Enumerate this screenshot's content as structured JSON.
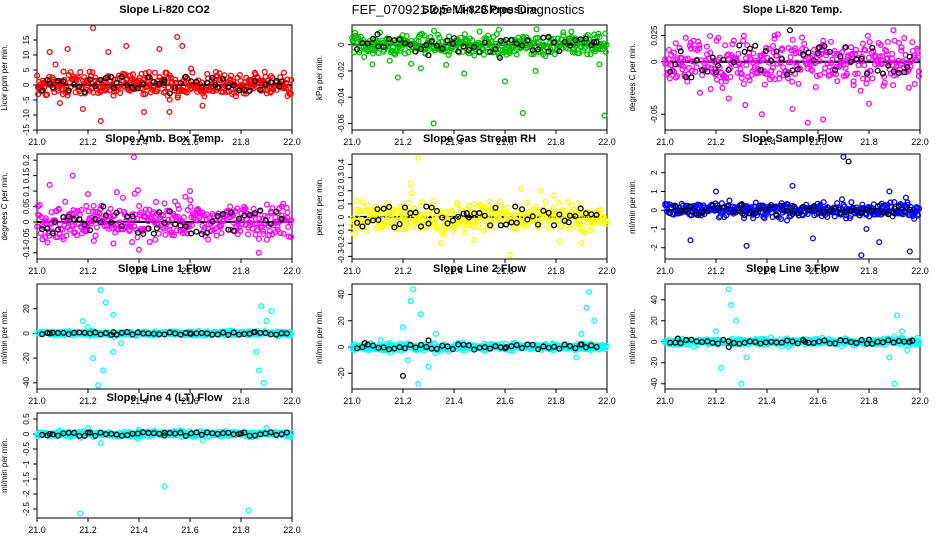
{
  "page_title": "FEF_070921  2.5 Min. Slope Diagnostics",
  "chart_data": [
    {
      "type": "scatter",
      "title": "Slope Li-820 CO2",
      "ylabel": "Licor ppm per min.",
      "xlim": [
        21.0,
        22.0
      ],
      "ylim": [
        -15,
        20
      ],
      "yticks": [
        -15,
        -10,
        -5,
        0,
        5,
        10,
        15
      ],
      "color": "#ff0000",
      "spread": 3.5,
      "out_min": -12,
      "out_max": 19,
      "outliers": [
        [
          21.22,
          19
        ],
        [
          21.05,
          11
        ],
        [
          21.12,
          12
        ],
        [
          21.28,
          11
        ],
        [
          21.35,
          13
        ],
        [
          21.48,
          12
        ],
        [
          21.55,
          16
        ],
        [
          21.57,
          13
        ],
        [
          21.25,
          -12
        ],
        [
          21.42,
          -9
        ],
        [
          21.52,
          -9
        ],
        [
          21.18,
          -8
        ],
        [
          21.09,
          -6
        ]
      ],
      "black_pts": [
        [
          21.05,
          0.5
        ],
        [
          21.3,
          -1
        ],
        [
          21.5,
          1
        ],
        [
          21.7,
          0
        ],
        [
          21.95,
          -0.5
        ]
      ]
    },
    {
      "type": "scatter",
      "title": "Slope Li-820 Pressure",
      "ylabel": "kPa per min.",
      "xlim": [
        21.0,
        22.0
      ],
      "ylim": [
        -0.065,
        0.015
      ],
      "yticks": [
        -0.06,
        -0.04,
        -0.02,
        0.0
      ],
      "color": "#00c000",
      "spread": 0.007,
      "out_min": -0.062,
      "out_max": 0.012,
      "outliers": [
        [
          21.32,
          -0.06
        ],
        [
          21.67,
          -0.052
        ],
        [
          21.99,
          -0.054
        ],
        [
          21.08,
          -0.015
        ],
        [
          21.18,
          -0.025
        ],
        [
          21.27,
          -0.018
        ],
        [
          21.44,
          -0.022
        ],
        [
          21.6,
          -0.028
        ],
        [
          21.72,
          -0.02
        ],
        [
          21.97,
          -0.015
        ],
        [
          21.5,
          0.01
        ],
        [
          21.86,
          0.01
        ]
      ],
      "black_pts": [
        [
          21.1,
          0.008
        ],
        [
          21.3,
          -0.008
        ],
        [
          21.4,
          0.005
        ],
        [
          21.58,
          -0.01
        ],
        [
          21.77,
          0.006
        ],
        [
          21.95,
          0.002
        ]
      ]
    },
    {
      "type": "scatter",
      "title": "Slope Li-820 Temp.",
      "ylabel": "degrees C per min.",
      "xlim": [
        21.0,
        22.0
      ],
      "ylim": [
        -0.065,
        0.035
      ],
      "yticks": [
        -0.05,
        0.0,
        0.025
      ],
      "color": "#ff00ff",
      "spread": 0.02,
      "out_min": -0.06,
      "out_max": 0.03,
      "outliers": [
        [
          21.43,
          0.025
        ],
        [
          21.38,
          -0.05
        ],
        [
          21.5,
          -0.045
        ],
        [
          21.56,
          -0.058
        ],
        [
          21.62,
          -0.055
        ],
        [
          21.25,
          -0.035
        ],
        [
          21.8,
          -0.04
        ],
        [
          21.9,
          0.02
        ]
      ],
      "black_pts": [
        [
          21.49,
          0.03
        ],
        [
          21.2,
          -0.01
        ],
        [
          21.6,
          0.008
        ],
        [
          21.95,
          -0.005
        ]
      ]
    },
    {
      "type": "scatter",
      "title": "Slope Amb. Box Temp.",
      "ylabel": "degrees C per min.",
      "xlim": [
        21.0,
        22.0
      ],
      "ylim": [
        -0.12,
        0.22
      ],
      "yticks": [
        -0.1,
        -0.05,
        0.0,
        0.05,
        0.1,
        0.15,
        0.2
      ],
      "color": "#ff00ff",
      "spread": 0.05,
      "out_min": -0.1,
      "out_max": 0.2,
      "outliers": [
        [
          21.38,
          0.21
        ],
        [
          21.14,
          0.15
        ],
        [
          21.2,
          0.09
        ],
        [
          21.3,
          -0.07
        ],
        [
          21.4,
          -0.09
        ],
        [
          21.87,
          -0.1
        ],
        [
          21.6,
          0.1
        ],
        [
          21.05,
          0.12
        ]
      ],
      "black_pts": [
        [
          21.07,
          0.0
        ],
        [
          21.26,
          0.05
        ],
        [
          21.47,
          -0.02
        ],
        [
          21.76,
          0.03
        ],
        [
          21.96,
          0.01
        ]
      ]
    },
    {
      "type": "scatter",
      "title": "Slope Gas Stream RH",
      "ylabel": "percent per min.",
      "xlim": [
        21.0,
        22.0
      ],
      "ylim": [
        -0.32,
        0.48
      ],
      "yticks": [
        -0.3,
        -0.2,
        -0.1,
        0.0,
        0.1,
        0.2,
        0.3,
        0.4
      ],
      "color": "#ffff00",
      "spread": 0.1,
      "out_min": -0.3,
      "out_max": 0.45,
      "outliers": [
        [
          21.26,
          0.45
        ],
        [
          21.62,
          -0.29
        ],
        [
          21.23,
          0.25
        ],
        [
          21.35,
          -0.2
        ],
        [
          21.74,
          0.2
        ],
        [
          21.9,
          -0.2
        ]
      ],
      "black_pts": [
        [
          21.1,
          0.06
        ],
        [
          21.3,
          -0.05
        ],
        [
          21.45,
          0.03
        ],
        [
          21.64,
          0.08
        ],
        [
          21.85,
          -0.04
        ]
      ]
    },
    {
      "type": "scatter",
      "title": "Slope Sample Flow",
      "ylabel": "ml/min per min.",
      "xlim": [
        21.0,
        22.0
      ],
      "ylim": [
        -2.6,
        3.0
      ],
      "yticks": [
        -2,
        -1,
        0,
        1,
        2
      ],
      "color": "#0000ff",
      "spread": 0.35,
      "out_min": -2.5,
      "out_max": 2.9,
      "outliers": [
        [
          21.7,
          2.85
        ],
        [
          21.77,
          -2.4
        ],
        [
          21.96,
          -2.2
        ],
        [
          21.1,
          -1.6
        ],
        [
          21.32,
          -1.9
        ],
        [
          21.58,
          -1.5
        ],
        [
          21.79,
          -1.0
        ],
        [
          21.84,
          -1.7
        ],
        [
          21.88,
          1.0
        ],
        [
          21.5,
          1.3
        ],
        [
          21.2,
          1.0
        ]
      ],
      "black_pts": [
        [
          21.72,
          2.6
        ],
        [
          21.1,
          0.2
        ],
        [
          21.3,
          0.3
        ],
        [
          21.5,
          -0.2
        ],
        [
          21.9,
          0.1
        ]
      ]
    },
    {
      "type": "scatter",
      "title": "Slope Line 1 Flow",
      "ylabel": "ml/min per min.",
      "xlim": [
        21.0,
        22.0
      ],
      "ylim": [
        -45,
        40
      ],
      "yticks": [
        -40,
        -20,
        0,
        20
      ],
      "color": "#00ffff",
      "spread": 1.5,
      "out_min": -43,
      "out_max": 38,
      "outliers": [
        [
          21.25,
          35
        ],
        [
          21.27,
          25
        ],
        [
          21.24,
          -42
        ],
        [
          21.26,
          -30
        ],
        [
          21.22,
          -20
        ],
        [
          21.3,
          15
        ],
        [
          21.3,
          -15
        ],
        [
          21.18,
          10
        ],
        [
          21.88,
          22
        ],
        [
          21.89,
          -40
        ],
        [
          21.87,
          -30
        ],
        [
          21.9,
          10
        ],
        [
          21.86,
          -15
        ],
        [
          21.92,
          18
        ],
        [
          21.2,
          5
        ],
        [
          21.33,
          -8
        ]
      ],
      "black_pts": [
        [
          21.05,
          0
        ],
        [
          21.3,
          1
        ],
        [
          21.6,
          0
        ],
        [
          21.85,
          1
        ],
        [
          21.98,
          0
        ]
      ]
    },
    {
      "type": "scatter",
      "title": "Slope Line 2 Flow",
      "ylabel": "ml/min per min.",
      "xlim": [
        21.0,
        22.0
      ],
      "ylim": [
        -32,
        48
      ],
      "yticks": [
        -20,
        0,
        20,
        40
      ],
      "color": "#00ffff",
      "spread": 2.5,
      "out_min": -30,
      "out_max": 45,
      "outliers": [
        [
          21.24,
          44
        ],
        [
          21.23,
          35
        ],
        [
          21.26,
          -28
        ],
        [
          21.27,
          25
        ],
        [
          21.2,
          15
        ],
        [
          21.3,
          -15
        ],
        [
          21.22,
          -10
        ],
        [
          21.93,
          42
        ],
        [
          21.92,
          30
        ],
        [
          21.95,
          20
        ],
        [
          21.9,
          10
        ],
        [
          21.88,
          -8
        ],
        [
          21.33,
          10
        ]
      ],
      "black_pts": [
        [
          21.2,
          -22
        ],
        [
          21.05,
          3
        ],
        [
          21.3,
          5
        ],
        [
          21.6,
          -1
        ],
        [
          21.9,
          2
        ]
      ]
    },
    {
      "type": "scatter",
      "title": "Slope Line 3 Flow",
      "ylabel": "ml/min per min.",
      "xlim": [
        21.0,
        22.0
      ],
      "ylim": [
        -45,
        55
      ],
      "yticks": [
        -40,
        -20,
        0,
        20,
        40
      ],
      "color": "#00ffff",
      "spread": 2.5,
      "out_min": -43,
      "out_max": 53,
      "outliers": [
        [
          21.25,
          50
        ],
        [
          21.26,
          35
        ],
        [
          21.22,
          -25
        ],
        [
          21.3,
          -40
        ],
        [
          21.28,
          20
        ],
        [
          21.2,
          10
        ],
        [
          21.32,
          -15
        ],
        [
          21.91,
          25
        ],
        [
          21.9,
          -40
        ],
        [
          21.93,
          10
        ],
        [
          21.88,
          -15
        ],
        [
          21.95,
          -8
        ]
      ],
      "black_pts": [
        [
          21.05,
          3
        ],
        [
          21.25,
          -5
        ],
        [
          21.55,
          0
        ],
        [
          21.8,
          2
        ],
        [
          21.97,
          1
        ]
      ]
    },
    {
      "type": "scatter",
      "title": "Slope Line 4 (LT) Flow",
      "ylabel": "ml/min per min.",
      "xlim": [
        21.0,
        22.0
      ],
      "ylim": [
        -2.8,
        0.7
      ],
      "yticks": [
        -2.5,
        -2.0,
        -1.5,
        -1.0,
        -0.5,
        0.0,
        0.5
      ],
      "color": "#00ffff",
      "spread": 0.08,
      "out_min": -2.7,
      "out_max": 0.3,
      "outliers": [
        [
          21.17,
          -2.65
        ],
        [
          21.5,
          -1.75
        ],
        [
          21.83,
          -2.55
        ],
        [
          21.2,
          0.2
        ],
        [
          21.25,
          -0.3
        ],
        [
          21.4,
          0.15
        ],
        [
          21.65,
          -0.2
        ],
        [
          21.9,
          0.2
        ]
      ],
      "black_pts": [
        [
          21.05,
          0.0
        ],
        [
          21.2,
          0.05
        ],
        [
          21.5,
          -0.05
        ],
        [
          21.8,
          0.02
        ],
        [
          21.98,
          0.05
        ]
      ]
    }
  ],
  "x_ticks": [
    21.0,
    21.2,
    21.4,
    21.6,
    21.8,
    22.0
  ],
  "tick_format": {
    "21.0": "21.0",
    "21.2": "21.2",
    "21.4": "21.4",
    "21.6": "21.6",
    "21.8": "21.8",
    "22.0": "22.0"
  }
}
